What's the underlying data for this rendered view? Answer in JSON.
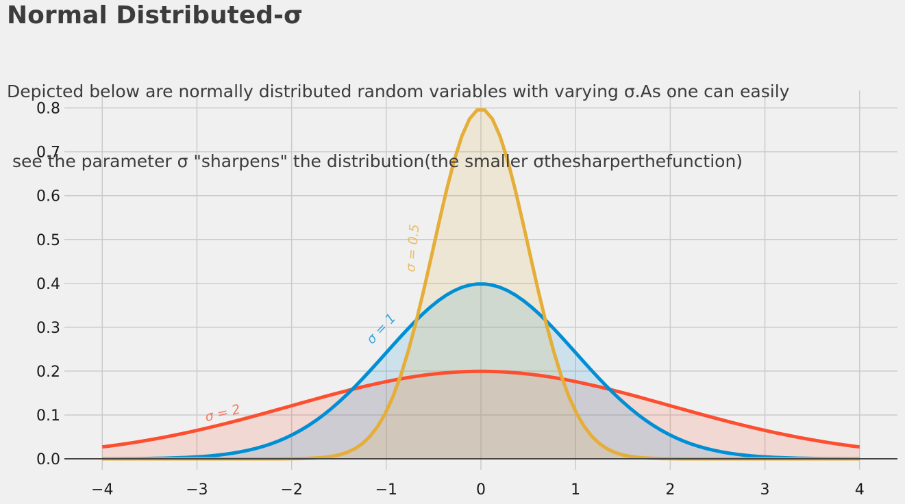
{
  "title": "Normal Distributed-σ",
  "subtitle": [
    "Depicted below are normally distributed random variables with varying σ.As one can easily",
    " see the parameter σ \"sharpens\" the distribution(the smaller σthesharperthefunction)"
  ],
  "chart_data": {
    "type": "area",
    "x_range": [
      -4,
      4
    ],
    "xlim": [
      -4.4,
      4.4
    ],
    "ylim": [
      -0.025,
      0.84
    ],
    "x_ticks": [
      -4,
      -3,
      -2,
      -1,
      0,
      1,
      2,
      3,
      4
    ],
    "x_tick_labels": [
      "−4",
      "−3",
      "−2",
      "−1",
      "0",
      "1",
      "2",
      "3",
      "4"
    ],
    "y_ticks": [
      0.0,
      0.1,
      0.2,
      0.3,
      0.4,
      0.5,
      0.6,
      0.7,
      0.8
    ],
    "y_tick_labels": [
      "0.0",
      "0.1",
      "0.2",
      "0.3",
      "0.4",
      "0.5",
      "0.6",
      "0.7",
      "0.8"
    ],
    "grid": true,
    "series": [
      {
        "mu": 0,
        "sigma": 2,
        "color": "#fc4f30",
        "label": "σ = 2",
        "label_x": -2.9,
        "label_y": 0.085,
        "label_angle": 14
      },
      {
        "mu": 0,
        "sigma": 1,
        "color": "#008fd5",
        "label": "σ = 1",
        "label_x": -1.15,
        "label_y": 0.26,
        "label_angle": 47
      },
      {
        "mu": 0,
        "sigma": 0.5,
        "color": "#e5ae38",
        "label": "σ = 0.5",
        "label_x": -0.7,
        "label_y": 0.425,
        "label_angle": 85
      }
    ]
  }
}
